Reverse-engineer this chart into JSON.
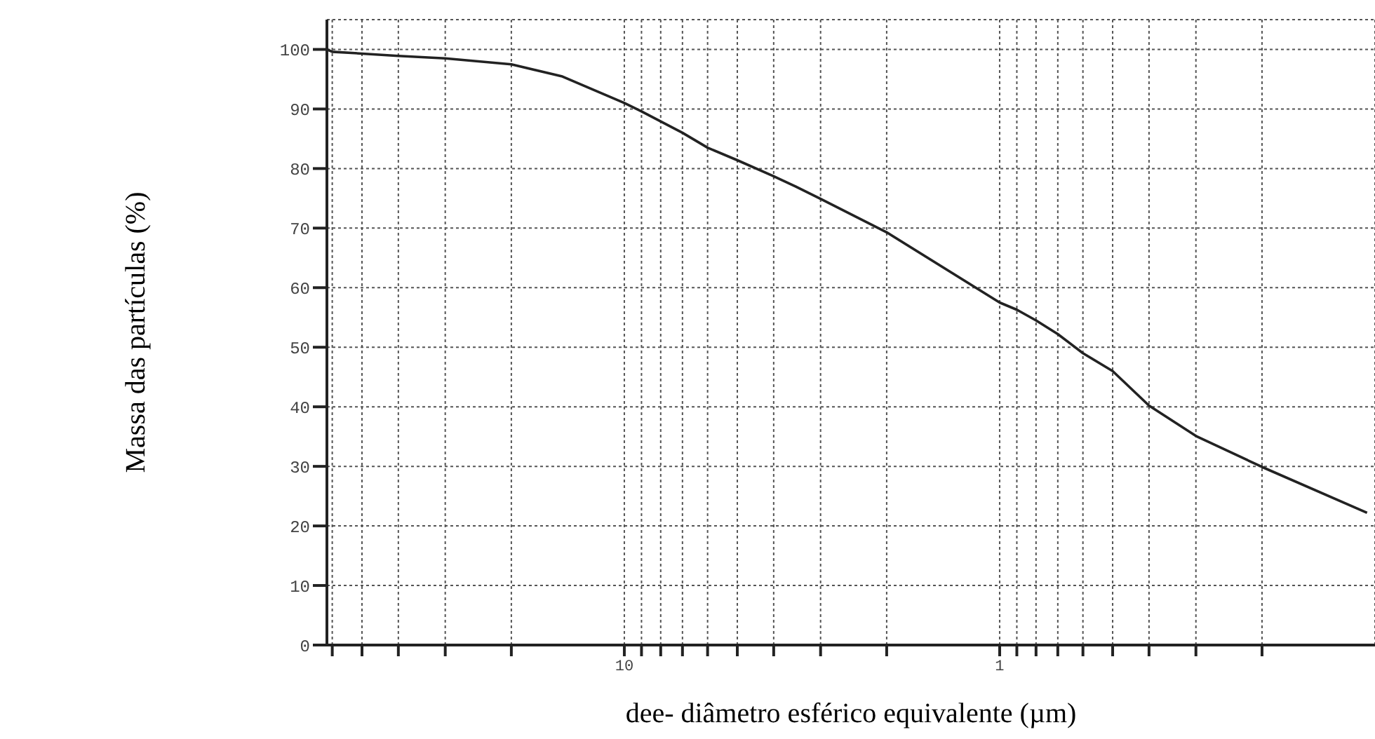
{
  "chart_data": {
    "type": "line",
    "xlabel": "dee- diâmetro esférico equivalente (µm)",
    "ylabel": "Massa das partículas (%)",
    "log": "x",
    "xlim": [
      62,
      0.1
    ],
    "ylim": [
      0,
      105
    ],
    "xticks": [
      {
        "value": 60,
        "label": null
      },
      {
        "value": 50,
        "label": null
      },
      {
        "value": 40,
        "label": null
      },
      {
        "value": 30,
        "label": null
      },
      {
        "value": 20,
        "label": null
      },
      10,
      {
        "value": 9,
        "label": null
      },
      {
        "value": 8,
        "label": null
      },
      {
        "value": 7,
        "label": null
      },
      {
        "value": 6,
        "label": null
      },
      {
        "value": 5,
        "label": null
      },
      {
        "value": 4,
        "label": null
      },
      {
        "value": 3,
        "label": null
      },
      {
        "value": 2,
        "label": null
      },
      1,
      {
        "value": 0.9,
        "label": null
      },
      {
        "value": 0.8,
        "label": null
      },
      {
        "value": 0.7,
        "label": null
      },
      {
        "value": 0.6,
        "label": null
      },
      {
        "value": 0.5,
        "label": null
      },
      {
        "value": 0.4,
        "label": null
      },
      {
        "value": 0.3,
        "label": null
      },
      {
        "value": 0.2,
        "label": null
      }
    ],
    "yticks": [
      0,
      10,
      20,
      30,
      40,
      50,
      60,
      70,
      80,
      90,
      100
    ],
    "grid": true,
    "marker": "none",
    "line_style": "solid",
    "series": [
      {
        "color": "#222222",
        "x": [
          62,
          60,
          50,
          40,
          30,
          20,
          14.7,
          10,
          9,
          7,
          6,
          5,
          4,
          3.5,
          3,
          2,
          1,
          0.9,
          0.8,
          0.7,
          0.6,
          0.5,
          0.4,
          0.3,
          0.2,
          0.105
        ],
        "values": [
          100,
          99.6,
          99.3,
          98.9,
          98.5,
          97.5,
          95.5,
          91,
          89.6,
          86,
          83.5,
          81.4,
          78.7,
          77,
          74.9,
          69.3,
          57.5,
          56.3,
          54.5,
          52.2,
          49,
          46,
          40.2,
          35.1,
          29.9,
          22.2
        ]
      }
    ]
  }
}
